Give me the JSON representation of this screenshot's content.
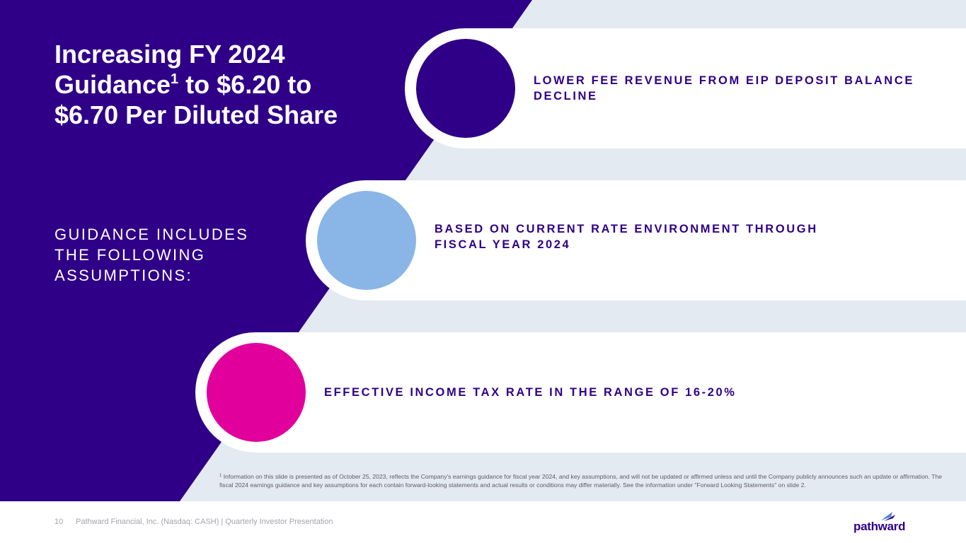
{
  "slide": {
    "title_line1": "Increasing FY 2024",
    "title_guidance": "Guidance",
    "title_superscript": "1",
    "title_rest": " to $6.20 to",
    "title_line3": "$6.70 Per Diluted Share",
    "subtitle": "GUIDANCE INCLUDES THE FOLLOWING ASSUMPTIONS:"
  },
  "assumptions": [
    {
      "text": "LOWER FEE REVENUE FROM EIP DEPOSIT BALANCE DECLINE",
      "color": "#2f0087"
    },
    {
      "text": "BASED ON CURRENT RATE ENVIRONMENT THROUGH FISCAL YEAR 2024",
      "color": "#8ab6e7"
    },
    {
      "text": "EFFECTIVE INCOME TAX RATE IN THE RANGE OF 16-20%",
      "color": "#e2009c"
    }
  ],
  "footnote": {
    "marker": "1",
    "text": " Information on this slide is presented as of October 25, 2023, reflects the Company's earnings guidance for fiscal year 2024, and key assumptions, and will not be updated or affirmed unless and until the Company publicly announces such an update or affirmation. The fiscal 2024 earnings guidance and key assumptions for each contain forward-looking statements and actual results or conditions may differ materially. See the information under \"Forward Looking Statements\" on slide 2."
  },
  "footer": {
    "page_number": "10",
    "text": "Pathward Financial, Inc. (Nasdaq: CASH) | Quarterly Investor Presentation",
    "logo_text": "pathward"
  },
  "colors": {
    "primary_purple": "#2f0087",
    "light_blue": "#8ab6e7",
    "magenta": "#e2009c",
    "background_light": "#e4eaf2",
    "logo_accent": "#4a86d9"
  }
}
